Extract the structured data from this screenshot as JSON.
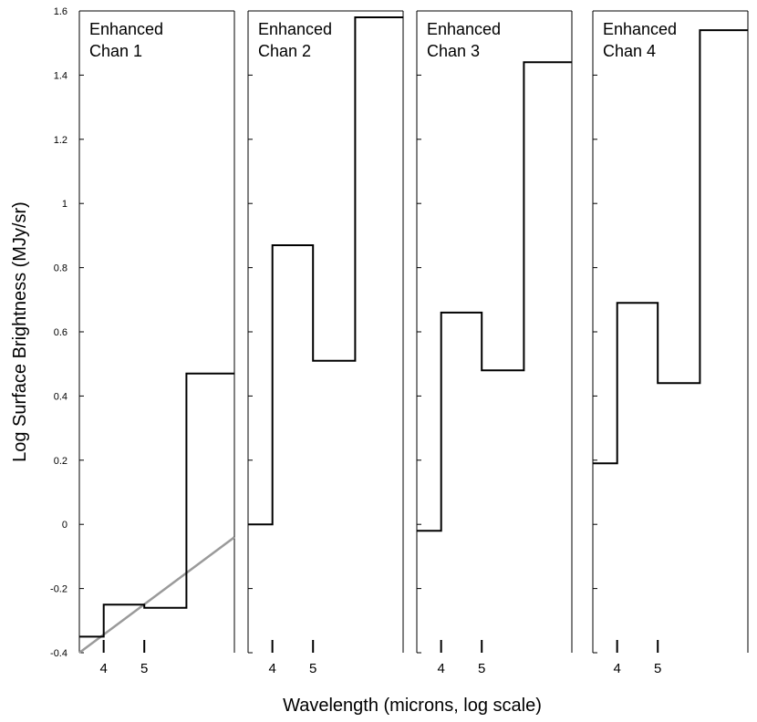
{
  "chart_data": {
    "type": "line",
    "shared": {
      "ylabel": "Log Surface Brightness (MJy/sr)",
      "xlabel": "Wavelength (microns, log scale)",
      "ylim": [
        -0.4,
        1.6
      ],
      "yticks": [
        -0.4,
        -0.2,
        0,
        0.2,
        0.4,
        0.6,
        0.8,
        1,
        1.2,
        1.4,
        1.6
      ],
      "ytick_labels": [
        "-0.4",
        "-0.2",
        "0",
        "0.2",
        "0.4",
        "0.6",
        "0.8",
        "1",
        "1.2",
        "1.4",
        "1.6"
      ],
      "xlim_log10": [
        0.5441,
        0.9138
      ],
      "xtick_values": [
        4,
        5
      ],
      "xtick_labels": [
        "4",
        "5"
      ],
      "x_scale": "log"
    },
    "panels": [
      {
        "title_line1": "Enhanced",
        "title_line2": "Chan 1",
        "step_breaks": [
          3.5,
          4.0,
          5.0,
          6.3,
          8.2
        ],
        "step_levels": [
          -0.35,
          -0.25,
          -0.26,
          0.47
        ],
        "reference_line": {
          "x": [
            3.5,
            8.2
          ],
          "y": [
            -0.4,
            -0.04
          ]
        }
      },
      {
        "title_line1": "Enhanced",
        "title_line2": "Chan 2",
        "step_breaks": [
          3.5,
          4.0,
          5.0,
          6.3,
          8.2
        ],
        "step_levels": [
          0.0,
          0.87,
          0.51,
          1.58
        ]
      },
      {
        "title_line1": "Enhanced",
        "title_line2": "Chan 3",
        "step_breaks": [
          3.5,
          4.0,
          5.0,
          6.3,
          8.2
        ],
        "step_levels": [
          -0.02,
          0.66,
          0.48,
          1.44
        ]
      },
      {
        "title_line1": "Enhanced",
        "title_line2": "Chan 4",
        "step_breaks": [
          3.5,
          4.0,
          5.0,
          6.3,
          8.2
        ],
        "step_levels": [
          0.19,
          0.69,
          0.44,
          1.54
        ]
      }
    ]
  },
  "colors": {
    "axis": "#000000",
    "step_line": "#000000",
    "reference_line": "#9a9a9a"
  }
}
